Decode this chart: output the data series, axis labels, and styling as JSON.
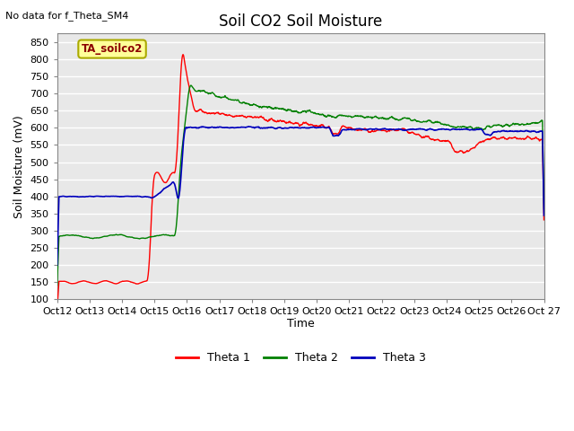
{
  "title": "Soil CO2 Soil Moisture",
  "subtitle": "No data for f_Theta_SM4",
  "ylabel": "Soil Moisture (mV)",
  "xlabel": "Time",
  "box_label": "TA_soilco2",
  "ylim": [
    100,
    875
  ],
  "yticks": [
    100,
    150,
    200,
    250,
    300,
    350,
    400,
    450,
    500,
    550,
    600,
    650,
    700,
    750,
    800,
    850
  ],
  "xtick_labels": [
    "Oct 12",
    "Oct 13",
    "Oct 14",
    "Oct 15",
    "Oct 16",
    "Oct 17",
    "Oct 18",
    "Oct 19",
    "Oct 20",
    "Oct 21",
    "Oct 22",
    "Oct 23",
    "Oct 24",
    "Oct 25",
    "Oct 26",
    "Oct 27"
  ],
  "colors": {
    "theta1": "#ff0000",
    "theta2": "#008000",
    "theta3": "#0000bb",
    "bg_plot": "#e8e8e8",
    "bg_fig": "#ffffff",
    "grid": "#ffffff",
    "box_bg": "#ffff99",
    "box_border": "#aaaa00"
  },
  "legend": [
    "Theta 1",
    "Theta 2",
    "Theta 3"
  ]
}
